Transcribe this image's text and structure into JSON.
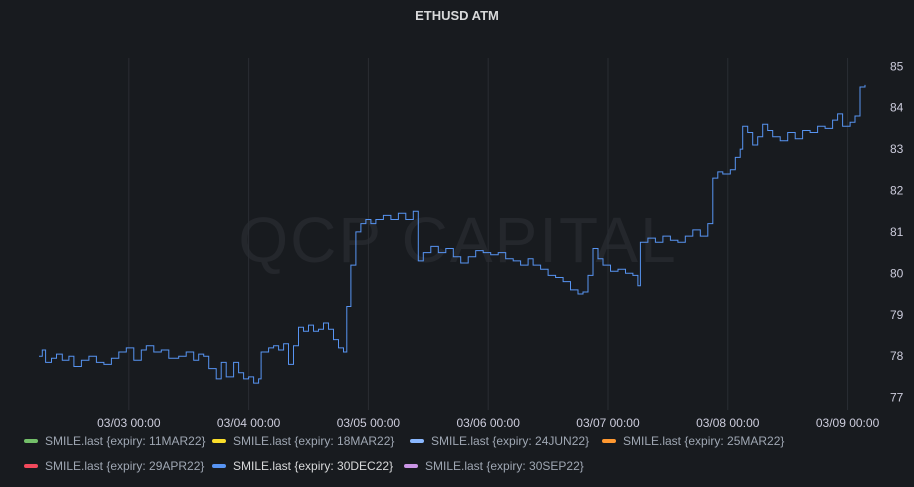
{
  "panel": {
    "title": "ETHUSD ATM"
  },
  "watermark": "QCP CAPITAL",
  "chart_data": {
    "type": "line",
    "title": "ETHUSD ATM",
    "xlabel": "",
    "ylabel": "",
    "x_ticks": [
      "03/03 00:00",
      "03/04 00:00",
      "03/05 00:00",
      "03/06 00:00",
      "03/07 00:00",
      "03/08 00:00",
      "03/09 00:00"
    ],
    "y_ticks": [
      77,
      78,
      79,
      80,
      81,
      82,
      83,
      84,
      85
    ],
    "xlim": [
      "03/02 05:00",
      "03/09 06:30"
    ],
    "ylim": [
      76.7,
      85.2
    ],
    "grid": "vertical",
    "legend_position": "bottom",
    "series": [
      {
        "name": "SMILE.last {expiry: 11MAR22}",
        "color": "#73bf69",
        "values": []
      },
      {
        "name": "SMILE.last {expiry: 18MAR22}",
        "color": "#fade2a",
        "values": []
      },
      {
        "name": "SMILE.last {expiry: 24JUN22}",
        "color": "#8ab8ff",
        "values": []
      },
      {
        "name": "SMILE.last {expiry: 25MAR22}",
        "color": "#ff9830",
        "values": []
      },
      {
        "name": "SMILE.last {expiry: 29APR22}",
        "color": "#f2495c",
        "values": []
      },
      {
        "name": "SMILE.last {expiry: 30DEC22}",
        "color": "#5794f2",
        "points": [
          [
            "03/02 06:00",
            78.0
          ],
          [
            "03/02 06:40",
            78.15
          ],
          [
            "03/02 07:20",
            77.85
          ],
          [
            "03/02 08:30",
            77.95
          ],
          [
            "03/02 09:30",
            78.05
          ],
          [
            "03/02 10:40",
            77.9
          ],
          [
            "03/02 12:00",
            78.0
          ],
          [
            "03/02 13:00",
            77.75
          ],
          [
            "03/02 14:30",
            77.9
          ],
          [
            "03/02 16:00",
            78.0
          ],
          [
            "03/02 17:30",
            77.85
          ],
          [
            "03/02 19:00",
            77.8
          ],
          [
            "03/02 20:30",
            77.95
          ],
          [
            "03/02 22:00",
            78.1
          ],
          [
            "03/02 23:30",
            78.2
          ],
          [
            "03/03 01:00",
            77.9
          ],
          [
            "03/03 02:30",
            78.15
          ],
          [
            "03/03 03:30",
            78.25
          ],
          [
            "03/03 05:00",
            78.1
          ],
          [
            "03/03 06:30",
            78.15
          ],
          [
            "03/03 08:00",
            77.95
          ],
          [
            "03/03 10:00",
            78.0
          ],
          [
            "03/03 11:30",
            78.1
          ],
          [
            "03/03 13:00",
            77.9
          ],
          [
            "03/03 14:00",
            78.05
          ],
          [
            "03/03 15:00",
            78.0
          ],
          [
            "03/03 16:00",
            77.7
          ],
          [
            "03/03 17:30",
            77.45
          ],
          [
            "03/03 18:30",
            77.85
          ],
          [
            "03/03 19:30",
            77.5
          ],
          [
            "03/03 21:00",
            77.85
          ],
          [
            "03/03 22:00",
            77.6
          ],
          [
            "03/03 23:00",
            77.45
          ],
          [
            "03/04 00:00",
            77.5
          ],
          [
            "03/04 01:00",
            77.35
          ],
          [
            "03/04 02:00",
            77.45
          ],
          [
            "03/04 02:30",
            78.1
          ],
          [
            "03/04 04:00",
            78.2
          ],
          [
            "03/04 05:00",
            78.25
          ],
          [
            "03/04 06:00",
            78.15
          ],
          [
            "03/04 07:00",
            78.3
          ],
          [
            "03/04 08:00",
            77.8
          ],
          [
            "03/04 09:00",
            78.25
          ],
          [
            "03/04 10:00",
            78.7
          ],
          [
            "03/04 11:00",
            78.6
          ],
          [
            "03/04 12:00",
            78.75
          ],
          [
            "03/04 13:00",
            78.6
          ],
          [
            "03/04 14:00",
            78.65
          ],
          [
            "03/04 15:00",
            78.8
          ],
          [
            "03/04 16:00",
            78.65
          ],
          [
            "03/04 17:00",
            78.4
          ],
          [
            "03/04 18:00",
            78.2
          ],
          [
            "03/04 19:00",
            78.1
          ],
          [
            "03/04 19:40",
            79.2
          ],
          [
            "03/04 20:30",
            80.2
          ],
          [
            "03/04 21:30",
            81.0
          ],
          [
            "03/04 22:30",
            81.2
          ],
          [
            "03/04 23:30",
            81.3
          ],
          [
            "03/05 00:30",
            81.2
          ],
          [
            "03/05 01:30",
            81.3
          ],
          [
            "03/05 03:00",
            81.4
          ],
          [
            "03/05 04:30",
            81.3
          ],
          [
            "03/05 06:00",
            81.45
          ],
          [
            "03/05 07:30",
            81.3
          ],
          [
            "03/05 09:00",
            81.5
          ],
          [
            "03/05 10:00",
            80.3
          ],
          [
            "03/05 11:00",
            80.5
          ],
          [
            "03/05 12:30",
            80.65
          ],
          [
            "03/05 14:00",
            80.5
          ],
          [
            "03/05 15:30",
            80.6
          ],
          [
            "03/05 17:00",
            80.4
          ],
          [
            "03/05 18:30",
            80.25
          ],
          [
            "03/05 20:00",
            80.4
          ],
          [
            "03/05 21:30",
            80.55
          ],
          [
            "03/05 23:00",
            80.5
          ],
          [
            "03/06 00:30",
            80.45
          ],
          [
            "03/06 02:00",
            80.5
          ],
          [
            "03/06 03:30",
            80.35
          ],
          [
            "03/06 05:00",
            80.3
          ],
          [
            "03/06 06:30",
            80.2
          ],
          [
            "03/06 08:00",
            80.35
          ],
          [
            "03/06 09:00",
            80.2
          ],
          [
            "03/06 10:30",
            80.1
          ],
          [
            "03/06 12:00",
            79.95
          ],
          [
            "03/06 13:30",
            79.9
          ],
          [
            "03/06 15:00",
            79.8
          ],
          [
            "03/06 16:30",
            79.6
          ],
          [
            "03/06 18:00",
            79.5
          ],
          [
            "03/06 19:00",
            79.55
          ],
          [
            "03/06 20:00",
            79.95
          ],
          [
            "03/06 21:00",
            80.6
          ],
          [
            "03/06 22:00",
            80.35
          ],
          [
            "03/06 23:00",
            80.2
          ],
          [
            "03/07 00:30",
            80.05
          ],
          [
            "03/07 02:00",
            80.1
          ],
          [
            "03/07 03:30",
            80.0
          ],
          [
            "03/07 05:00",
            79.95
          ],
          [
            "03/07 06:00",
            79.7
          ],
          [
            "03/07 06:30",
            80.75
          ],
          [
            "03/07 08:00",
            80.85
          ],
          [
            "03/07 09:30",
            80.75
          ],
          [
            "03/07 11:00",
            80.9
          ],
          [
            "03/07 12:30",
            80.8
          ],
          [
            "03/07 14:00",
            80.75
          ],
          [
            "03/07 15:30",
            80.9
          ],
          [
            "03/07 17:00",
            81.05
          ],
          [
            "03/07 18:30",
            80.9
          ],
          [
            "03/07 20:00",
            81.2
          ],
          [
            "03/07 21:00",
            82.3
          ],
          [
            "03/07 22:00",
            82.45
          ],
          [
            "03/07 23:00",
            82.4
          ],
          [
            "03/08 00:30",
            82.5
          ],
          [
            "03/08 01:30",
            82.8
          ],
          [
            "03/08 02:30",
            83.0
          ],
          [
            "03/08 03:00",
            83.55
          ],
          [
            "03/08 04:00",
            83.4
          ],
          [
            "03/08 05:00",
            83.1
          ],
          [
            "03/08 06:00",
            83.3
          ],
          [
            "03/08 07:00",
            83.6
          ],
          [
            "03/08 08:00",
            83.45
          ],
          [
            "03/08 09:00",
            83.3
          ],
          [
            "03/08 10:30",
            83.2
          ],
          [
            "03/08 12:00",
            83.4
          ],
          [
            "03/08 13:30",
            83.25
          ],
          [
            "03/08 15:00",
            83.45
          ],
          [
            "03/08 16:30",
            83.4
          ],
          [
            "03/08 18:00",
            83.55
          ],
          [
            "03/08 19:30",
            83.5
          ],
          [
            "03/08 21:00",
            83.7
          ],
          [
            "03/08 22:00",
            83.85
          ],
          [
            "03/08 23:00",
            83.55
          ],
          [
            "03/09 00:30",
            83.65
          ],
          [
            "03/09 01:30",
            83.8
          ],
          [
            "03/09 02:30",
            84.5
          ],
          [
            "03/09 03:30",
            84.55
          ]
        ]
      },
      {
        "name": "SMILE.last {expiry: 30SEP22}",
        "color": "#ca95e5",
        "values": []
      }
    ]
  }
}
